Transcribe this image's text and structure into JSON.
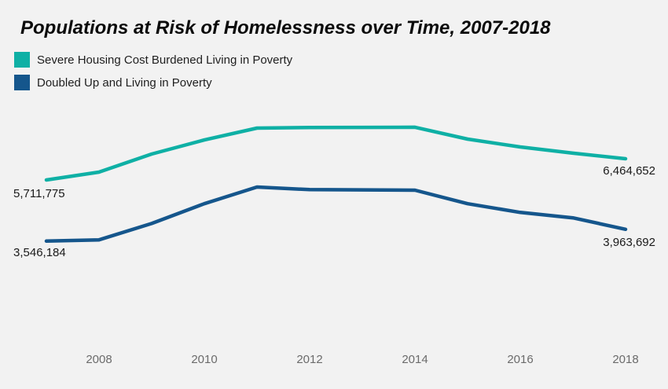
{
  "chart": {
    "title": "Populations at Risk of Homelessness over Time, 2007-2018",
    "background_color": "#f2f2f2",
    "legend": [
      {
        "id": "severe",
        "label": "Severe Housing Cost Burdened Living in Poverty",
        "color": "#0fb0a5"
      },
      {
        "id": "doubled",
        "label": "Doubled Up and Living in Poverty",
        "color": "#15568c"
      }
    ],
    "point_labels": {
      "severe_first": "5,711,775",
      "severe_last": "6,464,652",
      "doubled_first": "3,546,184",
      "doubled_last": "3,963,692"
    }
  },
  "chart_data": {
    "type": "line",
    "title": "Populations at Risk of Homelessness over Time, 2007-2018",
    "x": [
      2007,
      2008,
      2009,
      2010,
      2011,
      2012,
      2013,
      2014,
      2015,
      2016,
      2017,
      2018
    ],
    "series": [
      {
        "name": "Severe Housing Cost Burdened Living in Poverty",
        "color": "#0fb0a5",
        "values": [
          5711775,
          5990000,
          6630000,
          7130000,
          7550000,
          7570000,
          7575000,
          7580000,
          7160000,
          6880000,
          6660000,
          6464652
        ]
      },
      {
        "name": "Doubled Up and Living in Poverty",
        "color": "#15568c",
        "values": [
          3546184,
          3590000,
          4170000,
          4870000,
          5460000,
          5370000,
          5360000,
          5350000,
          4870000,
          4560000,
          4370000,
          3963692
        ]
      }
    ],
    "annotations": [
      "5,711,775",
      "3,546,184",
      "6,464,652",
      "3,963,692"
    ],
    "xticks": [
      "2008",
      "2010",
      "2012",
      "2014",
      "2016",
      "2018"
    ],
    "xlabel": "",
    "ylabel": "",
    "xlim": [
      2007,
      2018
    ],
    "ylim": [
      3400000,
      7800000
    ],
    "grid": false,
    "legend_position": "top-left"
  }
}
